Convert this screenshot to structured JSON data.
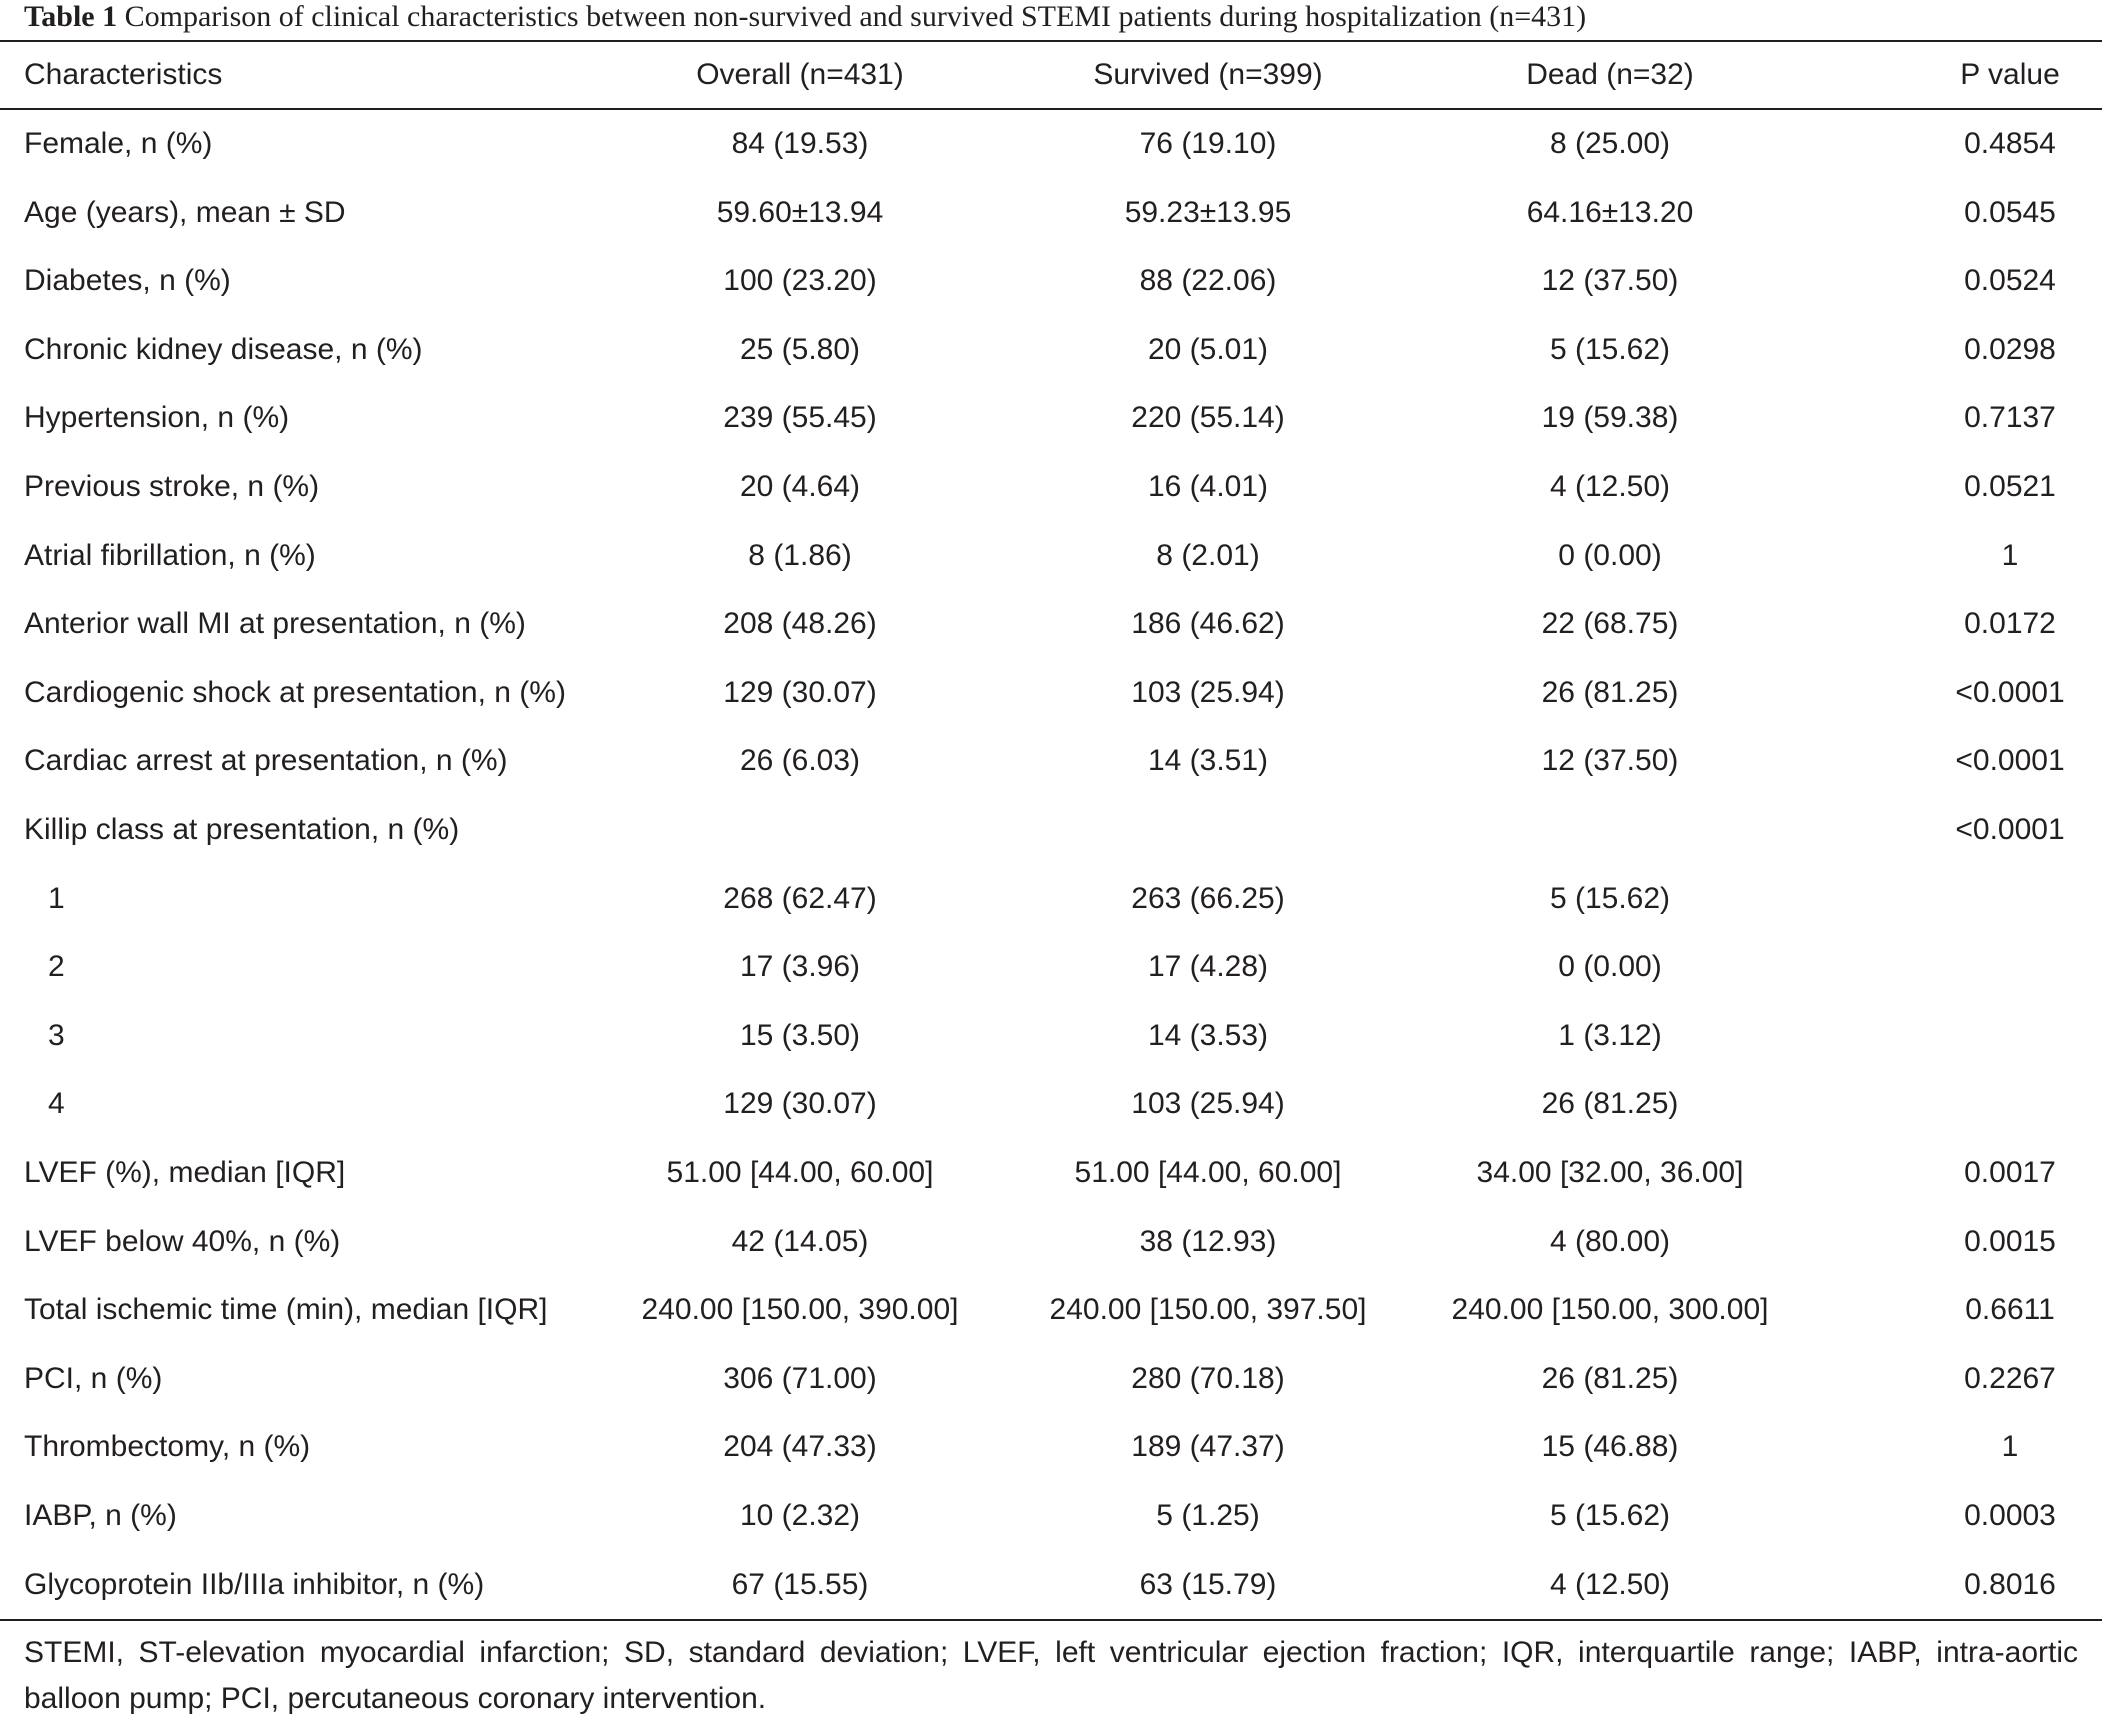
{
  "caption": {
    "label": "Table 1",
    "text": "Comparison of clinical characteristics between non-survived and survived STEMI patients during hospitalization (n=431)"
  },
  "header": {
    "characteristics": "Characteristics",
    "overall": "Overall (n=431)",
    "survived": "Survived (n=399)",
    "dead": "Dead (n=32)",
    "p_value": "P value"
  },
  "rows": [
    {
      "label": "Female, n (%)",
      "overall": "84 (19.53)",
      "survived": "76 (19.10)",
      "dead": "8 (25.00)",
      "p": "0.4854",
      "indent": false
    },
    {
      "label": "Age (years), mean ± SD",
      "overall": "59.60±13.94",
      "survived": "59.23±13.95",
      "dead": "64.16±13.20",
      "p": "0.0545",
      "indent": false
    },
    {
      "label": "Diabetes, n (%)",
      "overall": "100 (23.20)",
      "survived": "88 (22.06)",
      "dead": "12 (37.50)",
      "p": "0.0524",
      "indent": false
    },
    {
      "label": "Chronic kidney disease, n (%)",
      "overall": "25 (5.80)",
      "survived": "20 (5.01)",
      "dead": "5 (15.62)",
      "p": "0.0298",
      "indent": false
    },
    {
      "label": "Hypertension, n (%)",
      "overall": "239 (55.45)",
      "survived": "220 (55.14)",
      "dead": "19 (59.38)",
      "p": "0.7137",
      "indent": false
    },
    {
      "label": "Previous stroke, n (%)",
      "overall": "20 (4.64)",
      "survived": "16 (4.01)",
      "dead": "4 (12.50)",
      "p": "0.0521",
      "indent": false
    },
    {
      "label": "Atrial fibrillation, n (%)",
      "overall": "8 (1.86)",
      "survived": "8 (2.01)",
      "dead": "0 (0.00)",
      "p": "1",
      "indent": false
    },
    {
      "label": "Anterior wall MI at presentation, n (%)",
      "overall": "208 (48.26)",
      "survived": "186 (46.62)",
      "dead": "22 (68.75)",
      "p": "0.0172",
      "indent": false
    },
    {
      "label": "Cardiogenic shock at presentation, n (%)",
      "overall": "129 (30.07)",
      "survived": "103 (25.94)",
      "dead": "26 (81.25)",
      "p": "<0.0001",
      "indent": false
    },
    {
      "label": "Cardiac arrest at presentation, n (%)",
      "overall": "26 (6.03)",
      "survived": "14 (3.51)",
      "dead": "12 (37.50)",
      "p": "<0.0001",
      "indent": false
    },
    {
      "label": "Killip class at presentation, n (%)",
      "overall": "",
      "survived": "",
      "dead": "",
      "p": "<0.0001",
      "indent": false
    },
    {
      "label": "1",
      "overall": "268 (62.47)",
      "survived": "263 (66.25)",
      "dead": "5 (15.62)",
      "p": "",
      "indent": true
    },
    {
      "label": "2",
      "overall": "17 (3.96)",
      "survived": "17 (4.28)",
      "dead": "0 (0.00)",
      "p": "",
      "indent": true
    },
    {
      "label": "3",
      "overall": "15 (3.50)",
      "survived": "14 (3.53)",
      "dead": "1 (3.12)",
      "p": "",
      "indent": true
    },
    {
      "label": "4",
      "overall": "129 (30.07)",
      "survived": "103 (25.94)",
      "dead": "26 (81.25)",
      "p": "",
      "indent": true
    },
    {
      "label": "LVEF (%), median [IQR]",
      "overall": "51.00 [44.00, 60.00]",
      "survived": "51.00 [44.00, 60.00]",
      "dead": "34.00 [32.00, 36.00]",
      "p": "0.0017",
      "indent": false
    },
    {
      "label": "LVEF below 40%, n (%)",
      "overall": "42 (14.05)",
      "survived": "38 (12.93)",
      "dead": "4 (80.00)",
      "p": "0.0015",
      "indent": false
    },
    {
      "label": "Total ischemic time (min), median [IQR]",
      "overall": "240.00 [150.00, 390.00]",
      "survived": "240.00 [150.00, 397.50]",
      "dead": "240.00 [150.00, 300.00]",
      "p": "0.6611",
      "indent": false
    },
    {
      "label": "PCI, n (%)",
      "overall": "306 (71.00)",
      "survived": "280 (70.18)",
      "dead": "26 (81.25)",
      "p": "0.2267",
      "indent": false
    },
    {
      "label": "Thrombectomy, n (%)",
      "overall": "204 (47.33)",
      "survived": "189 (47.37)",
      "dead": "15 (46.88)",
      "p": "1",
      "indent": false
    },
    {
      "label": "IABP, n (%)",
      "overall": "10 (2.32)",
      "survived": "5 (1.25)",
      "dead": "5 (15.62)",
      "p": "0.0003",
      "indent": false
    },
    {
      "label": "Glycoprotein IIb/IIIa inhibitor, n (%)",
      "overall": "67 (15.55)",
      "survived": "63 (15.79)",
      "dead": "4 (12.50)",
      "p": "0.8016",
      "indent": false
    }
  ],
  "footnote": "STEMI, ST-elevation myocardial infarction; SD, standard deviation; LVEF, left ventricular ejection fraction; IQR, interquartile range; IABP, intra-aortic balloon pump; PCI, percutaneous coronary intervention."
}
